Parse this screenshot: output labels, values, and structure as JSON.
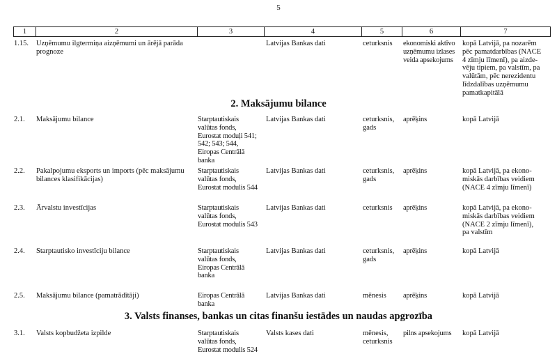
{
  "page_number": "5",
  "header_columns": [
    "1",
    "2",
    "3",
    "4",
    "5",
    "6",
    "7"
  ],
  "blocks": [
    {
      "type": "row",
      "cells": [
        "1.15.",
        "Uzņēmumu ilgtermiņa aizņēmumi un ārējā parāda\nprognoze",
        "",
        "Latvijas Bankas dati",
        "ceturksnis",
        "ekonomiski aktīvo\nuzņēmumu izlases\nveida apsekojums",
        "kopā Latvijā, pa nozarēm\npēc pamatdarbības (NACE\n4 zīmju līmenī), pa aizde-\nvēju tipiem, pa valstīm, pa\nvalūtām, pēc nerezidentu\nlīdzdalības uzņēmumu\npamatkapitālā"
      ]
    },
    {
      "type": "section",
      "title": "2. Maksājumu bilance"
    },
    {
      "type": "row",
      "cells": [
        "2.1.",
        "Maksājumu bilance",
        "Starptautiskais\nvalūtas fonds,\nEurostat moduļi 541;\n542; 543; 544,\nEiropas Centrālā\nbanka",
        "Latvijas Bankas dati",
        "ceturksnis,\ngads",
        "aprēķins",
        "kopā Latvijā"
      ]
    },
    {
      "type": "row",
      "cells": [
        "2.2.",
        "Pakalpojumu eksports un imports (pēc maksājumu\nbilances klasifikācijas)",
        "Starptautiskais\nvalūtas fonds,\nEurostat modulis 544",
        "Latvijas Bankas dati",
        "ceturksnis,\ngads",
        "aprēķins",
        "kopā Latvijā, pa ekono-\nmiskās darbības veidiem\n(NACE 4 zīmju līmenī)"
      ]
    },
    {
      "type": "row",
      "cells": [
        "2.3.",
        "Ārvalstu investīcijas",
        "Starptautiskais\nvalūtas fonds,\nEurostat modulis 543",
        "Latvijas Bankas dati",
        "ceturksnis",
        "aprēķins",
        "kopā Latvijā, pa ekono-\nmiskās darbības veidiem\n(NACE 2 zīmju līmenī),\npa valstīm"
      ]
    },
    {
      "type": "row",
      "cells": [
        "2.4.",
        "Starptautisko investīciju bilance",
        "Starptautiskais\nvalūtas fonds,\nEiropas Centrālā\nbanka",
        "Latvijas Bankas dati",
        "ceturksnis,\ngads",
        "aprēķins",
        "kopā Latvijā"
      ]
    },
    {
      "type": "row",
      "cells": [
        "2.5.",
        "Maksājumu bilance (pamatrādītāji)",
        "Eiropas Centrālā\nbanka",
        "Latvijas Bankas dati",
        "mēnesis",
        "aprēķins",
        "kopā Latvijā"
      ]
    },
    {
      "type": "section",
      "title": "3. Valsts finanses, bankas un citas finanšu iestādes un naudas apgrozība"
    },
    {
      "type": "row",
      "cells": [
        "3.1.",
        "Valsts kopbudžeta izpilde",
        "Starptautiskais\nvalūtas fonds,\nEurostat modulis 524",
        "Valsts kases dati",
        "mēnesis,\nceturksnis",
        "pilns apsekojums",
        "kopā Latvijā"
      ]
    }
  ]
}
